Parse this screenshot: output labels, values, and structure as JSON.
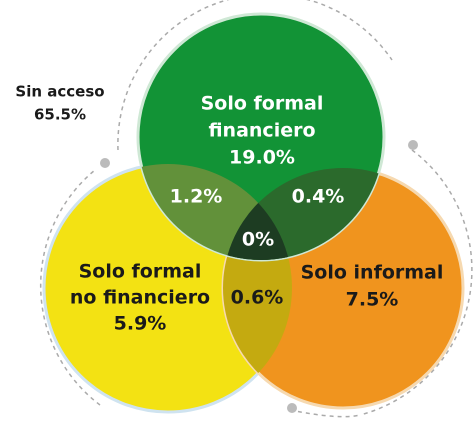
{
  "outside": {
    "lines": [
      "Sin acceso",
      "65.5%"
    ]
  },
  "regions": [
    {
      "lines": [
        "Solo formal",
        "financiero",
        "19.0%"
      ]
    },
    {
      "lines": [
        "Solo formal",
        "no financiero",
        "5.9%"
      ]
    },
    {
      "lines": [
        "Solo informal",
        "7.5%"
      ]
    },
    {
      "lines": [
        "1.2%"
      ]
    },
    {
      "lines": [
        "0.4%"
      ]
    },
    {
      "lines": [
        "0.6%"
      ]
    },
    {
      "lines": [
        "0%"
      ]
    }
  ]
}
